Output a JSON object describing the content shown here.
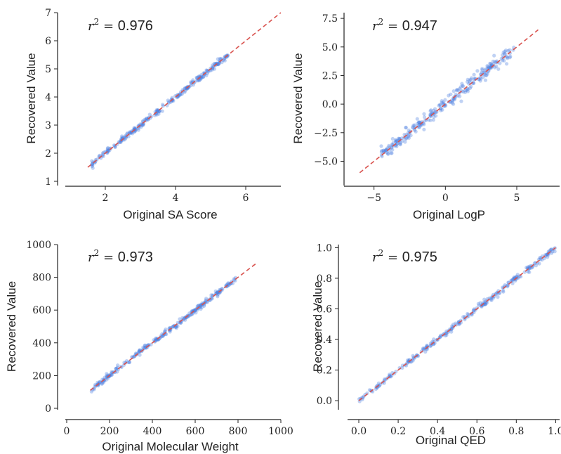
{
  "chart_data": [
    {
      "type": "scatter",
      "id": "sa",
      "xlabel": "Original SA Score",
      "ylabel": "Recovered Value",
      "xlim": [
        0.9,
        7.0
      ],
      "ylim": [
        0.9,
        7.0
      ],
      "xticks": [
        2,
        4,
        6
      ],
      "xtick_labels": [
        "2",
        "4",
        "6"
      ],
      "yticks": [
        1,
        2,
        3,
        4,
        5,
        6,
        7
      ],
      "ytick_labels": [
        "1",
        "2",
        "3",
        "4",
        "5",
        "6",
        "7"
      ],
      "annotation": {
        "prefix": "r",
        "sup": "2",
        "eq": " = ",
        "value": "0.976"
      },
      "data_range": [
        1.6,
        5.5
      ],
      "data_spread": 0.05,
      "identity_line": [
        1.5,
        7.0
      ],
      "grid": false
    },
    {
      "type": "scatter",
      "id": "logp",
      "xlabel": "Original LogP",
      "ylabel": "Recovered Value",
      "xlim": [
        -7.0,
        8.0
      ],
      "ylim": [
        -7.0,
        8.0
      ],
      "xticks": [
        -5,
        0,
        5
      ],
      "xtick_labels": [
        "−5",
        "0",
        "5"
      ],
      "yticks": [
        -5.0,
        -2.5,
        0.0,
        2.5,
        5.0,
        7.5
      ],
      "ytick_labels": [
        "−5.0",
        "−2.5",
        "0.0",
        "2.5",
        "5.0",
        "7.5"
      ],
      "annotation": {
        "prefix": "r",
        "sup": "2",
        "eq": " = ",
        "value": "0.947"
      },
      "data_range": [
        -4.5,
        4.8
      ],
      "data_spread": 0.3,
      "identity_line": [
        -6.0,
        6.5
      ],
      "grid": false
    },
    {
      "type": "scatter",
      "id": "mw",
      "xlabel": "Original Molecular Weight",
      "ylabel": "Recovered Value",
      "xlim": [
        0,
        1000
      ],
      "ylim": [
        0,
        1000
      ],
      "xticks": [
        0,
        200,
        400,
        600,
        800,
        1000
      ],
      "xtick_labels": [
        "0",
        "200",
        "400",
        "600",
        "800",
        "1000"
      ],
      "yticks": [
        0,
        200,
        400,
        600,
        800,
        1000
      ],
      "ytick_labels": [
        "0",
        "200",
        "400",
        "600",
        "800",
        "1000"
      ],
      "annotation": {
        "prefix": "r",
        "sup": "2",
        "eq": " = ",
        "value": "0.973"
      },
      "data_range": [
        115,
        790
      ],
      "data_spread": 8,
      "identity_line": [
        110,
        890
      ],
      "grid": false
    },
    {
      "type": "scatter",
      "id": "qed",
      "xlabel": "Original QED",
      "ylabel": "Recovered Value",
      "xlim": [
        -0.05,
        1.02
      ],
      "ylim": [
        -0.05,
        1.02
      ],
      "xticks": [
        0.0,
        0.2,
        0.4,
        0.6,
        0.8,
        1.0
      ],
      "xtick_labels": [
        "0.0",
        "0.2",
        "0.4",
        "0.6",
        "0.8",
        "1.0"
      ],
      "yticks": [
        0.0,
        0.2,
        0.4,
        0.6,
        0.8,
        1.0
      ],
      "ytick_labels": [
        "0.0",
        "0.2",
        "0.4",
        "0.6",
        "0.8",
        "1.0"
      ],
      "annotation": {
        "prefix": "r",
        "sup": "2",
        "eq": " = ",
        "value": "0.975"
      },
      "data_range": [
        0.0,
        1.0
      ],
      "data_spread": 0.01,
      "identity_line": [
        0.0,
        1.0
      ],
      "grid": false
    }
  ],
  "colors": {
    "points": "#4a7fe0",
    "identity_line": "#d9534f",
    "axes": "#222222"
  }
}
